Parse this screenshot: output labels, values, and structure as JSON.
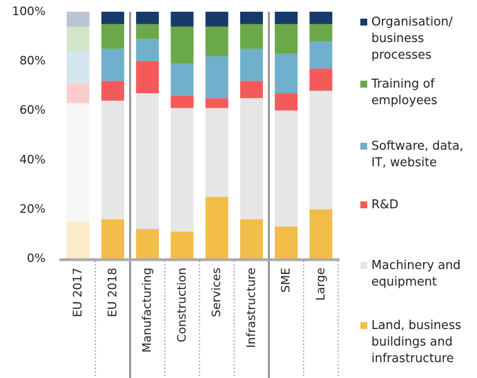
{
  "chart_data": {
    "type": "stacked_bar",
    "categories": [
      "EU 2017",
      "EU 2018",
      "Manufacturing",
      "Construction",
      "Services",
      "Infrastructure",
      "SME",
      "Large"
    ],
    "faded": [
      true,
      false,
      false,
      false,
      false,
      false,
      false,
      false
    ],
    "series": [
      {
        "name": "Land, business buildings and infrastructure",
        "color": "#f2bd48",
        "values": [
          15,
          16,
          12,
          11,
          25,
          16,
          13,
          20
        ]
      },
      {
        "name": "Machinery and equipment",
        "color": "#e6e6e6",
        "values": [
          48,
          48,
          55,
          50,
          36,
          49,
          47,
          48
        ]
      },
      {
        "name": "R&D",
        "color": "#f55a5a",
        "values": [
          8,
          8,
          13,
          5,
          4,
          7,
          7,
          9
        ]
      },
      {
        "name": "Software, data, IT, website",
        "color": "#6fb0cd",
        "values": [
          13,
          13,
          9,
          13,
          17,
          13,
          16,
          11
        ]
      },
      {
        "name": "Training of employees",
        "color": "#6aa84a",
        "values": [
          10,
          10,
          6,
          15,
          12,
          10,
          12,
          7
        ]
      },
      {
        "name": "Organisation/ business processes",
        "color": "#173a69",
        "values": [
          6,
          5,
          5,
          6,
          6,
          5,
          5,
          5
        ]
      }
    ],
    "ylim": [
      0,
      100
    ],
    "yticks": [
      {
        "value": 0,
        "label": "0%"
      },
      {
        "value": 20,
        "label": "20%"
      },
      {
        "value": 40,
        "label": "40%"
      },
      {
        "value": 60,
        "label": "60%"
      },
      {
        "value": 80,
        "label": "80%"
      },
      {
        "value": 100,
        "label": "100%"
      }
    ]
  }
}
